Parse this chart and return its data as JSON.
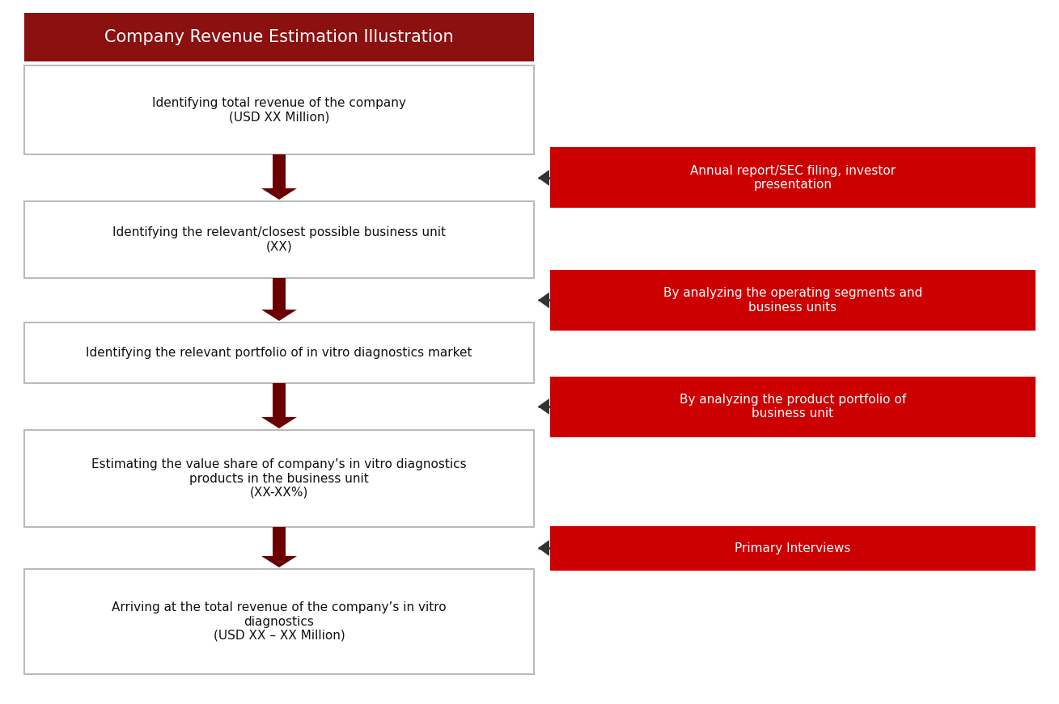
{
  "title": "Company Revenue Estimation Illustration",
  "title_bg_color": "#8B1010",
  "title_text_color": "#FFFFFF",
  "box_bg_color": "#FFFFFF",
  "box_border_color": "#BBBBBB",
  "red_box_color": "#CC0000",
  "red_box_text_color": "#FFFFFF",
  "arrow_color": "#6B0000",
  "left_boxes": [
    "Identifying total revenue of the company\n(USD XX Million)",
    "Identifying the relevant/closest possible business unit\n(XX)",
    "Identifying the relevant portfolio of in vitro diagnostics market",
    "Estimating the value share of company’s in vitro diagnostics\nproducts in the business unit\n(XX-XX%)",
    "Arriving at the total revenue of the company’s in vitro\ndiagnostics\n(USD XX – XX Million)"
  ],
  "right_boxes": [
    "Annual report/SEC filing, investor\npresentation",
    "By analyzing the operating segments and\nbusiness units",
    "By analyzing the product portfolio of\nbusiness unit",
    "Primary Interviews"
  ],
  "figsize": [
    13.09,
    8.71
  ],
  "bg_color": "#FFFFFF",
  "dpi": 100
}
